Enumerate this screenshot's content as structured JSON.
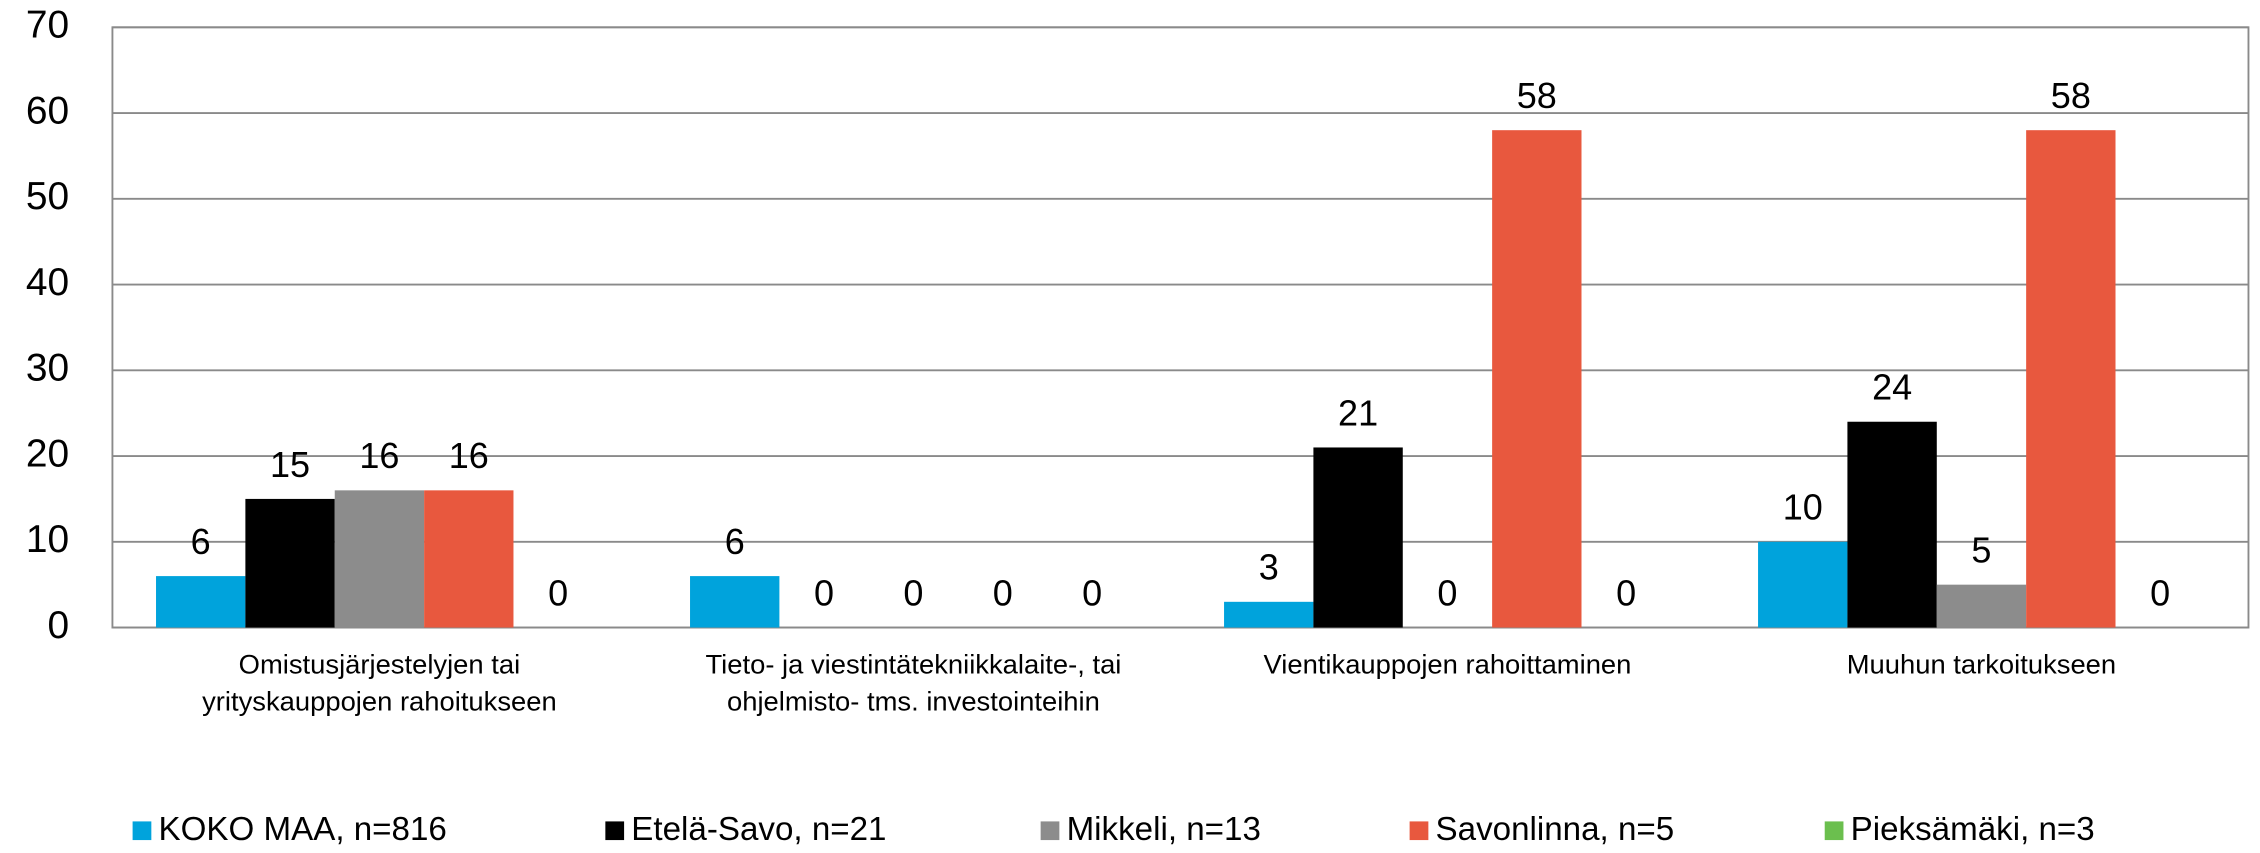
{
  "chart_data": {
    "type": "bar",
    "categories": [
      "Omistusjärjestelyjen tai\nyrityskauppojen rahoitukseen",
      "Tieto- ja viestintätekniikkalaite-, tai\nohjelmisto- tms. investointeihin",
      "Vientikauppojen rahoittaminen",
      "Muuhun tarkoitukseen"
    ],
    "series": [
      {
        "name": "KOKO MAA, n=816",
        "color": "#00a3dc",
        "values": [
          6,
          6,
          3,
          10
        ]
      },
      {
        "name": "Etelä-Savo, n=21",
        "color": "#000000",
        "values": [
          15,
          0,
          21,
          24
        ]
      },
      {
        "name": "Mikkeli, n=13",
        "color": "#8c8c8c",
        "values": [
          16,
          0,
          0,
          5
        ]
      },
      {
        "name": "Savonlinna, n=5",
        "color": "#e8583e",
        "values": [
          16,
          0,
          58,
          58
        ]
      },
      {
        "name": "Pieksämäki, n=3",
        "color": "#6bbf4e",
        "values": [
          0,
          0,
          0,
          0
        ]
      }
    ],
    "ylim": [
      0,
      70
    ],
    "yticks": [
      0,
      10,
      20,
      30,
      40,
      50,
      60,
      70
    ],
    "grid": true,
    "legend": "bottom"
  }
}
